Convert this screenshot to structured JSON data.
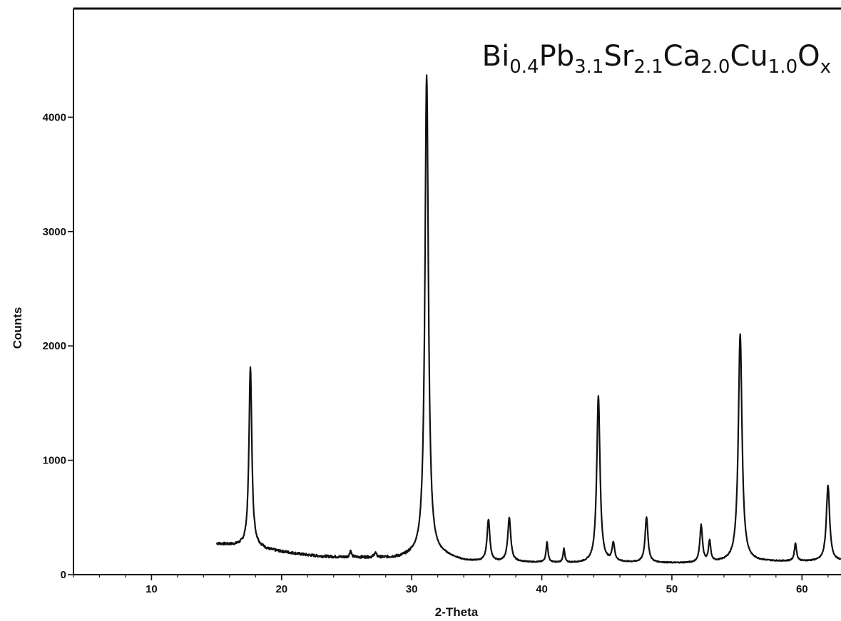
{
  "chart_data": {
    "type": "line",
    "title": "",
    "annotation": {
      "parts": [
        {
          "text": "Bi",
          "sub": false
        },
        {
          "text": "0.4",
          "sub": true
        },
        {
          "text": "Pb",
          "sub": false
        },
        {
          "text": "3.1",
          "sub": true
        },
        {
          "text": "Sr",
          "sub": false
        },
        {
          "text": "2.1",
          "sub": true
        },
        {
          "text": "Ca",
          "sub": false
        },
        {
          "text": "2.0",
          "sub": true
        },
        {
          "text": "Cu",
          "sub": false
        },
        {
          "text": "1.0",
          "sub": true
        },
        {
          "text": "O",
          "sub": false
        },
        {
          "text": "x",
          "sub": true
        }
      ]
    },
    "xlabel": "2-Theta",
    "ylabel": "Counts",
    "xlim": [
      4.0,
      63.0
    ],
    "ylim": [
      0,
      4950
    ],
    "x_ticks": [
      10,
      20,
      30,
      40,
      50,
      60
    ],
    "y_ticks": [
      0,
      1000,
      2000,
      3000,
      4000
    ],
    "grid": false,
    "background_level": [
      [
        15.0,
        270
      ],
      [
        16.0,
        260
      ],
      [
        17.0,
        250
      ],
      [
        18.2,
        240
      ],
      [
        19.0,
        215
      ],
      [
        20.0,
        200
      ],
      [
        21.0,
        185
      ],
      [
        22.0,
        170
      ],
      [
        23.0,
        160
      ],
      [
        24.0,
        155
      ],
      [
        25.0,
        150
      ],
      [
        26.0,
        150
      ],
      [
        27.0,
        148
      ],
      [
        28.0,
        145
      ],
      [
        29.0,
        145
      ],
      [
        30.0,
        160
      ],
      [
        32.5,
        160
      ],
      [
        34.0,
        120
      ],
      [
        36.0,
        110
      ],
      [
        38.0,
        110
      ],
      [
        40.0,
        105
      ],
      [
        42.0,
        100
      ],
      [
        44.0,
        100
      ],
      [
        46.0,
        105
      ],
      [
        48.0,
        105
      ],
      [
        50.0,
        100
      ],
      [
        52.0,
        100
      ],
      [
        54.0,
        110
      ],
      [
        56.0,
        115
      ],
      [
        58.0,
        115
      ],
      [
        60.0,
        115
      ],
      [
        62.0,
        120
      ],
      [
        63.0,
        120
      ]
    ],
    "peaks": [
      {
        "x": 17.6,
        "height": 1580,
        "width": 0.13
      },
      {
        "x": 25.3,
        "height": 60,
        "width": 0.08
      },
      {
        "x": 27.2,
        "height": 40,
        "width": 0.1
      },
      {
        "x": 31.15,
        "height": 4210,
        "width": 0.16
      },
      {
        "x": 35.9,
        "height": 365,
        "width": 0.13
      },
      {
        "x": 37.5,
        "height": 380,
        "width": 0.14
      },
      {
        "x": 40.4,
        "height": 175,
        "width": 0.09
      },
      {
        "x": 41.7,
        "height": 120,
        "width": 0.08
      },
      {
        "x": 44.35,
        "height": 1460,
        "width": 0.15
      },
      {
        "x": 45.5,
        "height": 160,
        "width": 0.12
      },
      {
        "x": 48.05,
        "height": 395,
        "width": 0.13
      },
      {
        "x": 52.25,
        "height": 325,
        "width": 0.12
      },
      {
        "x": 52.9,
        "height": 180,
        "width": 0.1
      },
      {
        "x": 55.25,
        "height": 1985,
        "width": 0.17
      },
      {
        "x": 59.5,
        "height": 155,
        "width": 0.1
      },
      {
        "x": 62.0,
        "height": 660,
        "width": 0.15
      }
    ]
  }
}
